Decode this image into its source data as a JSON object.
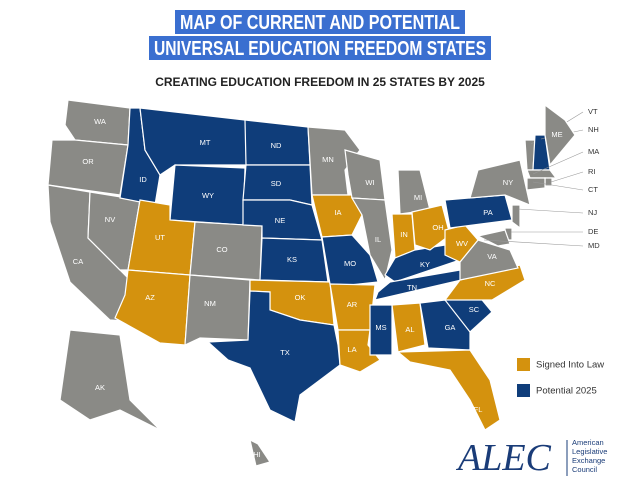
{
  "header": {
    "title_lines": [
      "MAP OF CURRENT AND POTENTIAL",
      "UNIVERSAL EDUCATION FREEDOM STATES"
    ],
    "subtitle": "CREATING EDUCATION FREEDOM IN 25 STATES BY 2025"
  },
  "states": [
    {
      "label": "WA",
      "color": "#8a8a86"
    },
    {
      "label": "OR",
      "color": "#8a8a86"
    },
    {
      "label": "CA",
      "color": "#8a8a86"
    },
    {
      "label": "NV",
      "color": "#8a8a86"
    },
    {
      "label": "ID",
      "color": "#0f3d7a"
    },
    {
      "label": "MT",
      "color": "#0f3d7a"
    },
    {
      "label": "WY",
      "color": "#0f3d7a"
    },
    {
      "label": "UT",
      "color": "#d4920e"
    },
    {
      "label": "AZ",
      "color": "#d4920e"
    },
    {
      "label": "CO",
      "color": "#8a8a86"
    },
    {
      "label": "NM",
      "color": "#8a8a86"
    },
    {
      "label": "ND",
      "color": "#0f3d7a"
    },
    {
      "label": "SD",
      "color": "#0f3d7a"
    },
    {
      "label": "NE",
      "color": "#0f3d7a"
    },
    {
      "label": "KS",
      "color": "#0f3d7a"
    },
    {
      "label": "OK",
      "color": "#d4920e"
    },
    {
      "label": "TX",
      "color": "#0f3d7a"
    },
    {
      "label": "MN",
      "color": "#8a8a86"
    },
    {
      "label": "IA",
      "color": "#d4920e"
    },
    {
      "label": "MO",
      "color": "#0f3d7a"
    },
    {
      "label": "AR",
      "color": "#d4920e"
    },
    {
      "label": "LA",
      "color": "#d4920e"
    },
    {
      "label": "WI",
      "color": "#8a8a86"
    },
    {
      "label": "IL",
      "color": "#8a8a86"
    },
    {
      "label": "MS",
      "color": "#0f3d7a"
    },
    {
      "label": "MI",
      "color": "#8a8a86"
    },
    {
      "label": "IN",
      "color": "#d4920e"
    },
    {
      "label": "KY",
      "color": "#0f3d7a"
    },
    {
      "label": "TN",
      "color": "#0f3d7a"
    },
    {
      "label": "AL",
      "color": "#d4920e"
    },
    {
      "label": "OH",
      "color": "#d4920e"
    },
    {
      "label": "GA",
      "color": "#0f3d7a"
    },
    {
      "label": "FL",
      "color": "#d4920e"
    },
    {
      "label": "SC",
      "color": "#0f3d7a"
    },
    {
      "label": "NC",
      "color": "#d4920e"
    },
    {
      "label": "VA",
      "color": "#8a8a86"
    },
    {
      "label": "WV",
      "color": "#d4920e"
    },
    {
      "label": "PA",
      "color": "#0f3d7a"
    },
    {
      "label": "NY",
      "color": "#8a8a86"
    },
    {
      "label": "VT",
      "color": "#8a8a86"
    },
    {
      "label": "NH",
      "color": "#0f3d7a"
    },
    {
      "label": "ME",
      "color": "#8a8a86"
    },
    {
      "label": "MA",
      "color": "#8a8a86"
    },
    {
      "label": "RI",
      "color": "#8a8a86"
    },
    {
      "label": "CT",
      "color": "#8a8a86"
    },
    {
      "label": "NJ",
      "color": "#8a8a86"
    },
    {
      "label": "DE",
      "color": "#8a8a86"
    },
    {
      "label": "MD",
      "color": "#8a8a86"
    },
    {
      "label": "AK",
      "color": "#8a8a86"
    },
    {
      "label": "HI",
      "color": "#8a8a86"
    }
  ],
  "legend": [
    {
      "label": "Signed Into Law",
      "color": "#d4920e"
    },
    {
      "label": "Potential 2025",
      "color": "#0f3d7a"
    }
  ],
  "logo": {
    "mark": "ALEC",
    "text_lines": [
      "American",
      "Legislative",
      "Exchange",
      "Council"
    ]
  }
}
